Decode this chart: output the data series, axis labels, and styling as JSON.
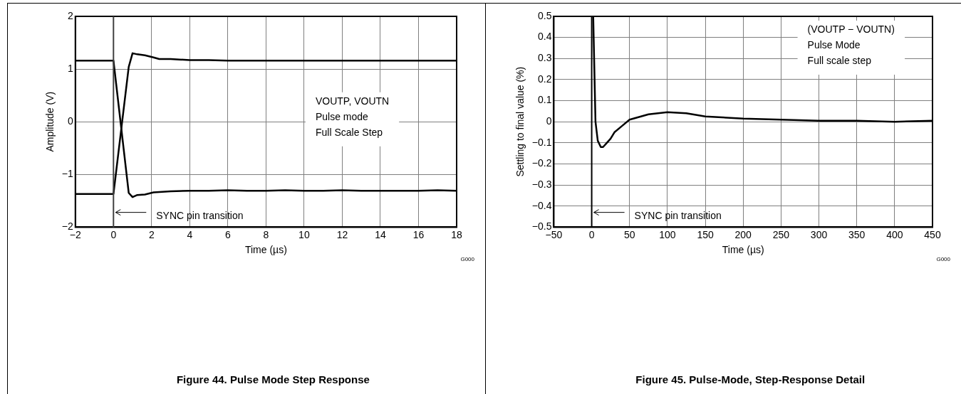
{
  "chart_data": [
    {
      "type": "line",
      "title": "Figure 44. Pulse Mode Step Response",
      "xlabel": "Time (µs)",
      "ylabel": "Amplitude (V)",
      "xlim": [
        -2,
        18
      ],
      "xticks": [
        {
          "value": -2,
          "label": "−2"
        },
        0,
        2,
        4,
        6,
        8,
        10,
        12,
        14,
        16,
        18
      ],
      "ylim": [
        -2,
        2
      ],
      "yticks": [
        {
          "value": -2,
          "label": "−2"
        },
        {
          "value": -1,
          "label": "−1"
        },
        0,
        1,
        2
      ],
      "grid": true,
      "legend": false,
      "marker": "none",
      "line_style": "solid",
      "series": [
        {
          "color": "#000000",
          "x": [
            -2,
            0,
            0.8,
            1,
            1.25,
            1.65,
            2.1,
            3,
            4,
            5,
            6,
            7,
            8,
            9,
            10,
            11,
            12,
            13,
            14,
            15,
            16,
            17,
            18
          ],
          "values": [
            1.16,
            1.16,
            -1.35,
            -1.43,
            -1.39,
            -1.38,
            -1.34,
            -1.32,
            -1.31,
            -1.31,
            -1.3,
            -1.31,
            -1.31,
            -1.3,
            -1.31,
            -1.31,
            -1.3,
            -1.31,
            -1.31,
            -1.31,
            -1.31,
            -1.3,
            -1.31
          ]
        },
        {
          "color": "#000000",
          "x": [
            -2,
            0,
            0.8,
            1,
            1.25,
            1.65,
            2.1,
            2.4,
            3,
            4,
            5,
            6,
            7,
            8,
            9,
            10,
            11,
            12,
            13,
            14,
            15,
            16,
            17,
            18
          ],
          "values": [
            -1.37,
            -1.37,
            1.04,
            1.3,
            1.28,
            1.26,
            1.22,
            1.19,
            1.19,
            1.17,
            1.17,
            1.16,
            1.16,
            1.16,
            1.16,
            1.16,
            1.16,
            1.16,
            1.16,
            1.16,
            1.16,
            1.16,
            1.16,
            1.16
          ]
        }
      ],
      "ref_lines": [
        {
          "axis": "x",
          "value": 0,
          "label": "SYNC pin transition",
          "color": "#404040"
        }
      ],
      "annotations": [
        "VOUTP, VOUTN\nPulse mode\nFull Scale Step",
        "G000"
      ]
    },
    {
      "type": "line",
      "title": "Figure 45. Pulse-Mode, Step-Response Detail",
      "xlabel": "Time (µs)",
      "ylabel": "Settling to final value (%)",
      "xlim": [
        -50,
        450
      ],
      "xticks": [
        {
          "value": -50,
          "label": "−50"
        },
        0,
        50,
        100,
        150,
        200,
        250,
        300,
        350,
        400,
        450
      ],
      "ylim": [
        -0.5,
        0.5
      ],
      "yticks": [
        {
          "value": -0.5,
          "label": "−0.5"
        },
        {
          "value": -0.4,
          "label": "−0.4"
        },
        {
          "value": -0.3,
          "label": "−0.3"
        },
        {
          "value": -0.2,
          "label": "−0.2"
        },
        {
          "value": -0.1,
          "label": "−0.1"
        },
        0,
        0.1,
        0.2,
        0.3,
        0.4,
        0.5
      ],
      "grid": true,
      "legend": false,
      "marker": "none",
      "line_style": "solid",
      "series": [
        {
          "color": "#000000",
          "x": [
            2,
            5,
            8,
            12,
            15,
            20,
            25,
            30,
            40,
            50,
            60,
            75,
            100,
            125,
            150,
            200,
            250,
            300,
            350,
            400,
            450
          ],
          "values": [
            0.5,
            0,
            -0.09,
            -0.12,
            -0.12,
            -0.1,
            -0.08,
            -0.05,
            -0.02,
            0.01,
            0.02,
            0.035,
            0.045,
            0.04,
            0.025,
            0.015,
            0.01,
            0.005,
            0.005,
            0,
            0.005
          ]
        }
      ],
      "ref_lines": [
        {
          "axis": "x",
          "value": 0,
          "label": "SYNC pin transition",
          "color": "#000000"
        }
      ],
      "annotations": [
        "(VOUTP − VOUTN)\nPulse Mode\nFull scale step",
        "G000"
      ]
    }
  ]
}
